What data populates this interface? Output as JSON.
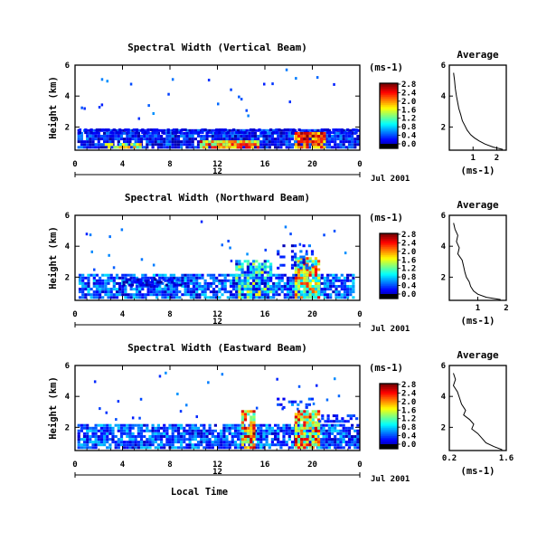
{
  "chart_data": [
    {
      "type": "heatmap",
      "title": "Spectral Width (Vertical Beam)",
      "ylabel": "Height (km)",
      "xlabel": "",
      "xlim": [
        0,
        24
      ],
      "ylim": [
        0.5,
        6
      ],
      "x_ticks": [
        "0",
        "4",
        "8",
        "12",
        "16",
        "20",
        "0"
      ],
      "y_ticks": [
        "6",
        "4",
        "2"
      ],
      "day_label": "12",
      "date_label": "Jul 2001",
      "colorbar": {
        "label": "(ms-1)",
        "range": [
          0,
          2.8
        ],
        "ticks": [
          "2.8",
          "2.4",
          "2.0",
          "1.6",
          "1.2",
          "0.8",
          "0.4",
          "0.0"
        ]
      },
      "average_profile": {
        "title": "Average",
        "xlabel": "(ms-1)",
        "xlim": [
          0,
          2.4
        ],
        "ylim": [
          0.5,
          6
        ],
        "x_ticks": [
          "1",
          "2"
        ],
        "y_ticks": [
          "6",
          "4",
          "2"
        ],
        "x": [
          0.18,
          0.22,
          0.25,
          0.3,
          0.35,
          0.4,
          0.48,
          0.55,
          0.65,
          0.75,
          0.9,
          1.05,
          1.25,
          1.5,
          1.85,
          2.25
        ],
        "y": [
          5.5,
          5.0,
          4.5,
          4.0,
          3.6,
          3.2,
          2.8,
          2.4,
          2.1,
          1.8,
          1.5,
          1.3,
          1.1,
          0.9,
          0.7,
          0.55
        ]
      },
      "profile_note": "echoes concentrated below 2 km; strongest widths near 10-14 h and 18-20 h"
    },
    {
      "type": "heatmap",
      "title": "Spectral Width (Northward Beam)",
      "ylabel": "Height (km)",
      "xlabel": "",
      "xlim": [
        0,
        24
      ],
      "ylim": [
        0.5,
        6
      ],
      "x_ticks": [
        "0",
        "4",
        "8",
        "12",
        "16",
        "20",
        "0"
      ],
      "y_ticks": [
        "6",
        "4",
        "2"
      ],
      "day_label": "12",
      "date_label": "Jul 2001",
      "colorbar": {
        "label": "(ms-1)",
        "range": [
          0,
          2.8
        ],
        "ticks": [
          "2.8",
          "2.4",
          "2.0",
          "1.6",
          "1.2",
          "0.8",
          "0.4",
          "0.0"
        ]
      },
      "average_profile": {
        "title": "Average",
        "xlabel": "(ms-1)",
        "xlim": [
          0,
          2
        ],
        "ylim": [
          0.5,
          6
        ],
        "x_ticks": [
          "1",
          "2"
        ],
        "y_ticks": [
          "6",
          "4",
          "2"
        ],
        "x": [
          0.15,
          0.2,
          0.3,
          0.25,
          0.35,
          0.3,
          0.45,
          0.5,
          0.55,
          0.6,
          0.7,
          0.75,
          0.85,
          1.0,
          1.3,
          1.8
        ],
        "y": [
          5.5,
          5.1,
          4.7,
          4.3,
          3.9,
          3.5,
          3.1,
          2.7,
          2.3,
          2.0,
          1.7,
          1.4,
          1.1,
          0.9,
          0.7,
          0.55
        ]
      }
    },
    {
      "type": "heatmap",
      "title": "Spectral Width (Eastward Beam)",
      "ylabel": "Height (km)",
      "xlabel": "Local Time",
      "xlim": [
        0,
        24
      ],
      "ylim": [
        0.5,
        6
      ],
      "x_ticks": [
        "0",
        "4",
        "8",
        "12",
        "16",
        "20",
        "0"
      ],
      "y_ticks": [
        "6",
        "4",
        "2"
      ],
      "day_label": "12",
      "date_label": "Jul 2001",
      "colorbar": {
        "label": "(ms-1)",
        "range": [
          0,
          2.8
        ],
        "ticks": [
          "2.8",
          "2.4",
          "2.0",
          "1.6",
          "1.2",
          "0.8",
          "0.4",
          "0.0"
        ]
      },
      "average_profile": {
        "title": "Average",
        "xlabel": "(ms-1)",
        "xlim": [
          0.2,
          1.6
        ],
        "ylim": [
          0.5,
          6
        ],
        "x_ticks": [
          "0.2",
          "1.6"
        ],
        "y_ticks": [
          "6",
          "4",
          "2"
        ],
        "x": [
          0.3,
          0.35,
          0.3,
          0.4,
          0.45,
          0.5,
          0.6,
          0.55,
          0.7,
          0.8,
          0.75,
          0.9,
          1.0,
          1.1,
          1.3,
          1.5
        ],
        "y": [
          5.5,
          5.1,
          4.7,
          4.3,
          3.9,
          3.5,
          3.1,
          2.8,
          2.5,
          2.2,
          1.9,
          1.6,
          1.3,
          1.0,
          0.75,
          0.55
        ]
      }
    }
  ]
}
